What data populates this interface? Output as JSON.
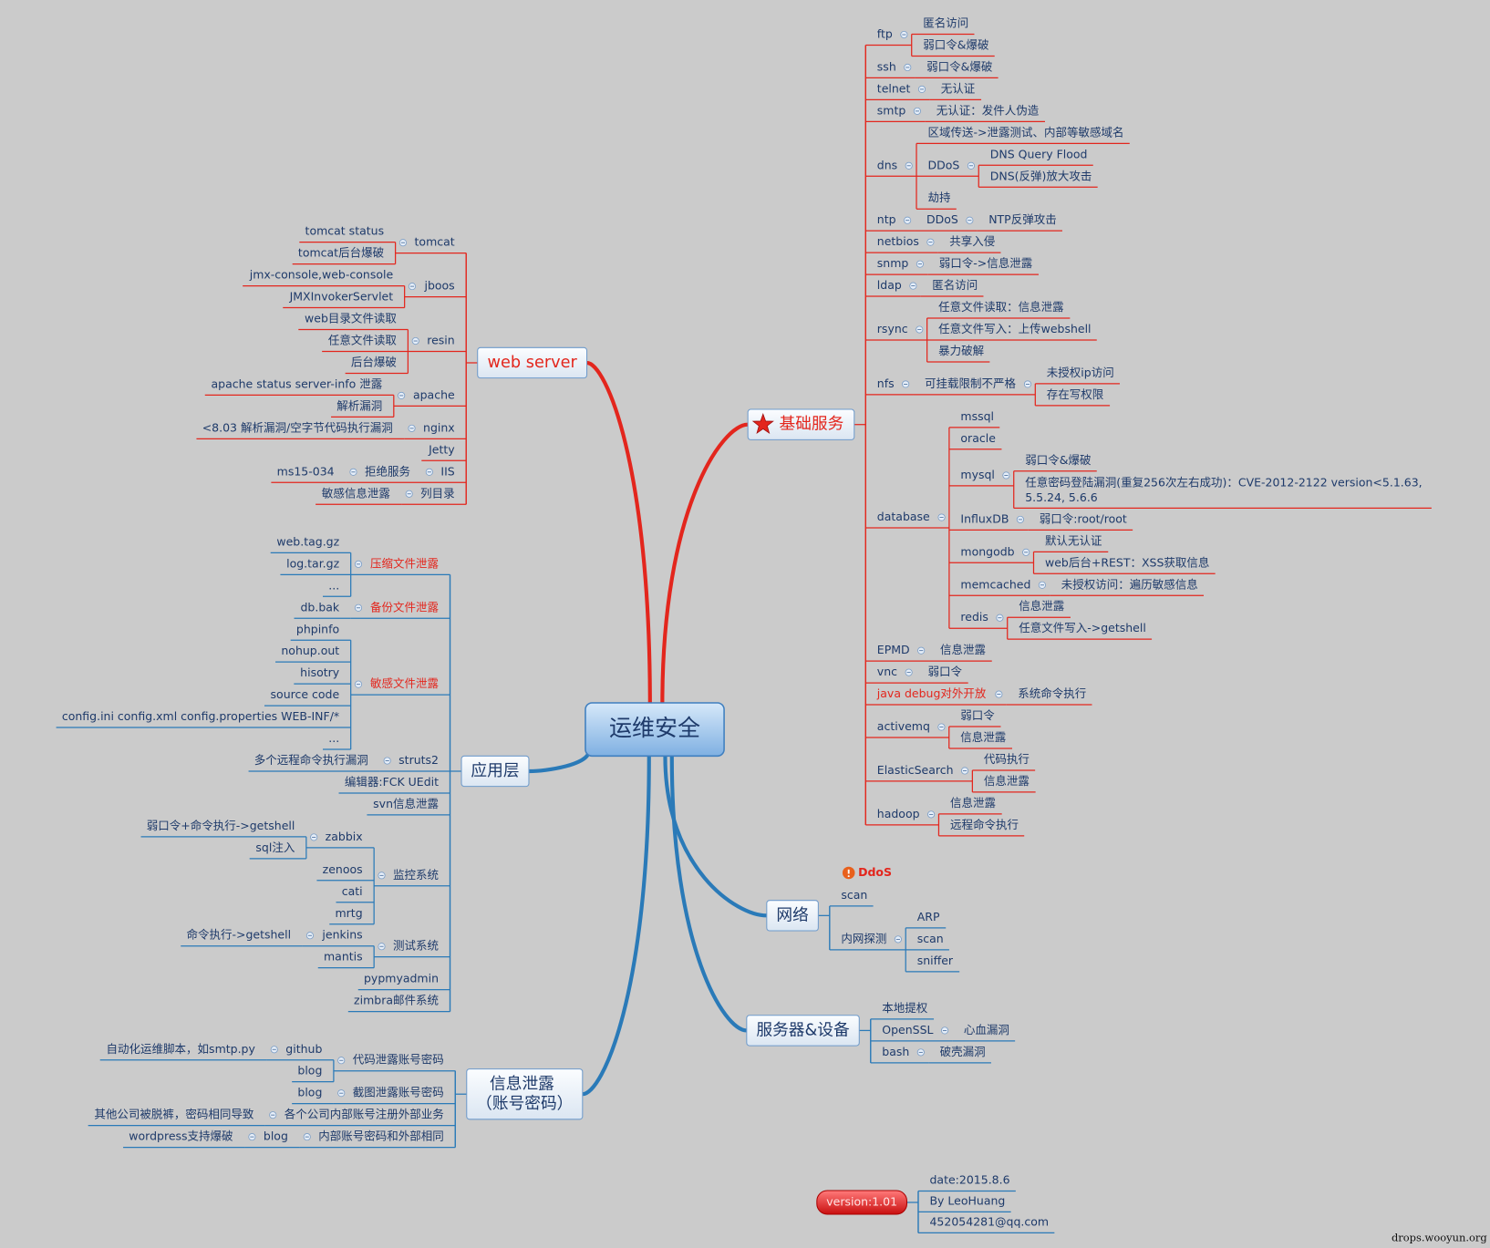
{
  "center": "运维安全",
  "branches": [
    {
      "label": "基础服务",
      "color": "#e3261d",
      "children": [
        {
          "label": "ftp",
          "children": [
            {
              "label": "匿名访问"
            },
            {
              "label": "弱口令&爆破"
            }
          ]
        },
        {
          "label": "ssh",
          "children": [
            {
              "label": "弱口令&爆破"
            }
          ]
        },
        {
          "label": "telnet",
          "children": [
            {
              "label": "无认证"
            }
          ]
        },
        {
          "label": "smtp",
          "children": [
            {
              "label": "无认证：发件人伪造"
            }
          ]
        },
        {
          "label": "dns",
          "children": [
            {
              "label": "区域传送->泄露测试、内部等敏感域名"
            },
            {
              "label": "DDoS",
              "children": [
                {
                  "label": "DNS Query Flood"
                },
                {
                  "label": "DNS(反弹)放大攻击"
                }
              ]
            },
            {
              "label": "劫持"
            }
          ]
        },
        {
          "label": "ntp",
          "children": [
            {
              "label": "DDoS",
              "children": [
                {
                  "label": "NTP反弹攻击"
                }
              ]
            }
          ]
        },
        {
          "label": "netbios",
          "children": [
            {
              "label": "共享入侵"
            }
          ]
        },
        {
          "label": "snmp",
          "children": [
            {
              "label": "弱口令->信息泄露"
            }
          ]
        },
        {
          "label": "ldap",
          "children": [
            {
              "label": "匿名访问"
            }
          ]
        },
        {
          "label": "rsync",
          "children": [
            {
              "label": "任意文件读取：信息泄露"
            },
            {
              "label": "任意文件写入：上传webshell"
            },
            {
              "label": "暴力破解"
            }
          ]
        },
        {
          "label": "nfs",
          "children": [
            {
              "label": "可挂载限制不严格",
              "children": [
                {
                  "label": "未授权ip访问"
                },
                {
                  "label": "存在写权限"
                }
              ]
            }
          ]
        },
        {
          "label": "database",
          "children": [
            {
              "label": "mssql"
            },
            {
              "label": "oracle"
            },
            {
              "label": "mysql",
              "children": [
                {
                  "label": "弱口令&爆破"
                },
                {
                  "label": "任意密码登陆漏洞(重复256次左右成功)：CVE-2012-2122 version<5.1.63,\n5.5.24, 5.6.6"
                }
              ]
            },
            {
              "label": "InfluxDB",
              "children": [
                {
                  "label": "弱口令:root/root"
                }
              ]
            },
            {
              "label": "mongodb",
              "children": [
                {
                  "label": "默认无认证"
                },
                {
                  "label": "web后台+REST：XSS获取信息"
                }
              ]
            },
            {
              "label": "memcached",
              "children": [
                {
                  "label": "未授权访问：遍历敏感信息"
                }
              ]
            },
            {
              "label": "redis",
              "children": [
                {
                  "label": "信息泄露"
                },
                {
                  "label": "任意文件写入->getshell"
                }
              ]
            }
          ]
        },
        {
          "label": "EPMD",
          "children": [
            {
              "label": "信息泄露"
            }
          ]
        },
        {
          "label": "vnc",
          "children": [
            {
              "label": "弱口令"
            }
          ]
        },
        {
          "label": "java debug对外开放",
          "color": "#e3261d",
          "children": [
            {
              "label": "系统命令执行"
            }
          ]
        },
        {
          "label": "activemq",
          "children": [
            {
              "label": "弱口令"
            },
            {
              "label": "信息泄露"
            }
          ]
        },
        {
          "label": "ElasticSearch",
          "children": [
            {
              "label": "代码执行"
            },
            {
              "label": "信息泄露"
            }
          ]
        },
        {
          "label": "hadoop",
          "children": [
            {
              "label": "信息泄露"
            },
            {
              "label": "远程命令执行"
            }
          ]
        }
      ]
    },
    {
      "label": "web server",
      "color": "#e3261d",
      "children": [
        {
          "label": "tomcat",
          "children": [
            {
              "label": "tomcat status"
            },
            {
              "label": "tomcat后台爆破"
            }
          ]
        },
        {
          "label": "jboos",
          "children": [
            {
              "label": "jmx-console,web-console"
            },
            {
              "label": "JMXInvokerServlet"
            }
          ]
        },
        {
          "label": "resin",
          "children": [
            {
              "label": "web目录文件读取"
            },
            {
              "label": "任意文件读取"
            },
            {
              "label": "后台爆破"
            }
          ]
        },
        {
          "label": "apache",
          "children": [
            {
              "label": "apache status  server-info 泄露"
            },
            {
              "label": "解析漏洞"
            }
          ]
        },
        {
          "label": "nginx",
          "children": [
            {
              "label": "<8.03 解析漏洞/空字节代码执行漏洞"
            }
          ]
        },
        {
          "label": "Jetty"
        },
        {
          "label": "IIS",
          "children": [
            {
              "label": "拒绝服务",
              "children": [
                {
                  "label": "ms15-034"
                }
              ]
            }
          ]
        },
        {
          "label": "列目录",
          "children": [
            {
              "label": "敏感信息泄露"
            }
          ]
        }
      ]
    },
    {
      "label": "应用层",
      "color": "#2a7ab8",
      "children": [
        {
          "label": "压缩文件泄露",
          "color": "#e3261d",
          "children": [
            {
              "label": "web.tag.gz"
            },
            {
              "label": "log.tar.gz"
            },
            {
              "label": "..."
            }
          ]
        },
        {
          "label": "备份文件泄露",
          "color": "#e3261d",
          "children": [
            {
              "label": "db.bak"
            }
          ]
        },
        {
          "label": "敏感文件泄露",
          "color": "#e3261d",
          "children": [
            {
              "label": "phpinfo"
            },
            {
              "label": "nohup.out"
            },
            {
              "label": "hisotry"
            },
            {
              "label": "source code"
            },
            {
              "label": "config.ini   config.xml   config.properties   WEB-INF/*"
            },
            {
              "label": "..."
            }
          ]
        },
        {
          "label": "struts2",
          "children": [
            {
              "label": "多个远程命令执行漏洞"
            }
          ]
        },
        {
          "label": "编辑器:FCK  UEdit"
        },
        {
          "label": "svn信息泄露"
        },
        {
          "label": "监控系统",
          "children": [
            {
              "label": "zabbix",
              "children": [
                {
                  "label": "弱口令+命令执行->getshell"
                },
                {
                  "label": "sql注入"
                }
              ]
            },
            {
              "label": "zenoos"
            },
            {
              "label": "cati"
            },
            {
              "label": "mrtg"
            }
          ]
        },
        {
          "label": "测试系统",
          "children": [
            {
              "label": "jenkins",
              "children": [
                {
                  "label": "命令执行->getshell"
                }
              ]
            },
            {
              "label": "mantis"
            }
          ]
        },
        {
          "label": "pypmyadmin"
        },
        {
          "label": "zimbra邮件系统"
        }
      ]
    },
    {
      "label": "信息泄露\n（账号密码）",
      "color": "#2a7ab8",
      "children": [
        {
          "label": "代码泄露账号密码",
          "children": [
            {
              "label": "github",
              "children": [
                {
                  "label": "自动化运维脚本，如smtp.py"
                }
              ]
            },
            {
              "label": "blog"
            }
          ]
        },
        {
          "label": "截图泄露账号密码",
          "children": [
            {
              "label": "blog"
            }
          ]
        },
        {
          "label": "各个公司内部账号注册外部业务",
          "children": [
            {
              "label": "其他公司被脱裤，密码相同导致"
            }
          ]
        },
        {
          "label": "内部账号密码和外部相同",
          "children": [
            {
              "label": "blog",
              "children": [
                {
                  "label": "wordpress支持爆破"
                }
              ]
            }
          ]
        }
      ]
    },
    {
      "label": "网络",
      "color": "#2a7ab8",
      "note": "DdoS",
      "children": [
        {
          "label": "scan"
        },
        {
          "label": "内网探测",
          "children": [
            {
              "label": "ARP"
            },
            {
              "label": "scan"
            },
            {
              "label": "sniffer"
            }
          ]
        }
      ]
    },
    {
      "label": "服务器&设备",
      "color": "#2a7ab8",
      "children": [
        {
          "label": "本地提权"
        },
        {
          "label": "OpenSSL",
          "children": [
            {
              "label": "心血漏洞"
            }
          ]
        },
        {
          "label": "bash",
          "children": [
            {
              "label": "破壳漏洞"
            }
          ]
        }
      ]
    }
  ],
  "version": {
    "label": "version:1.01",
    "color": "#2a7ab8",
    "children": [
      {
        "label": "date:2015.8.6"
      },
      {
        "label": "By LeoHuang"
      },
      {
        "label": "452054281@qq.com"
      }
    ]
  },
  "footer": "drops.wooyun.org"
}
